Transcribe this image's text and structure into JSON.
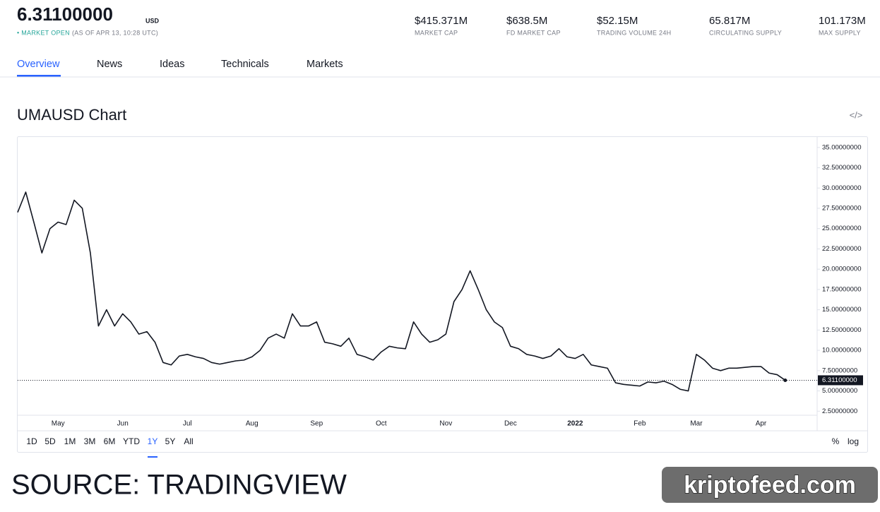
{
  "header": {
    "price": "6.31100000",
    "currency": "USD",
    "status": "• MARKET OPEN",
    "status_time": "(AS OF APR 13, 10:28 UTC)",
    "stats": [
      {
        "value": "$415.371M",
        "label": "MARKET CAP"
      },
      {
        "value": "$638.5M",
        "label": "FD MARKET CAP"
      },
      {
        "value": "$52.15M",
        "label": "TRADING VOLUME 24H"
      },
      {
        "value": "65.817M",
        "label": "CIRCULATING SUPPLY"
      },
      {
        "value": "101.173M",
        "label": "MAX SUPPLY"
      }
    ]
  },
  "tabs": [
    "Overview",
    "News",
    "Ideas",
    "Technicals",
    "Markets"
  ],
  "chart_heading": "UMAUSD Chart",
  "chart_data": {
    "type": "line",
    "color": "#131722",
    "grid": false,
    "categories": [
      null,
      null,
      null,
      null,
      null,
      "May",
      null,
      null,
      null,
      null,
      null,
      null,
      null,
      "Jun",
      null,
      null,
      null,
      null,
      null,
      null,
      null,
      "Jul",
      null,
      null,
      null,
      null,
      null,
      null,
      null,
      "Aug",
      null,
      null,
      null,
      null,
      null,
      null,
      null,
      "Sep",
      null,
      null,
      null,
      null,
      null,
      null,
      null,
      "Oct",
      null,
      null,
      null,
      null,
      null,
      null,
      null,
      "Nov",
      null,
      null,
      null,
      null,
      null,
      null,
      null,
      "Dec",
      null,
      null,
      null,
      null,
      null,
      null,
      null,
      "2022",
      null,
      null,
      null,
      null,
      null,
      null,
      null,
      "Feb",
      null,
      null,
      null,
      null,
      null,
      null,
      "Mar",
      null,
      null,
      null,
      null,
      null,
      null,
      null,
      "Apr",
      null,
      null,
      null
    ],
    "values": [
      27,
      29.5,
      25.8,
      22,
      25,
      25.8,
      25.5,
      28.5,
      27.5,
      22,
      13,
      15,
      13,
      14.5,
      13.5,
      12,
      12.3,
      11,
      8.5,
      8.2,
      9.3,
      9.5,
      9.2,
      9.0,
      8.5,
      8.3,
      8.5,
      8.7,
      8.8,
      9.2,
      10,
      11.5,
      12,
      11.5,
      14.5,
      13,
      13,
      13.5,
      11,
      10.8,
      10.5,
      11.5,
      9.5,
      9.2,
      8.8,
      9.8,
      10.5,
      10.3,
      10.2,
      13.5,
      12,
      11,
      11.3,
      12,
      16,
      17.5,
      19.8,
      17.5,
      15,
      13.5,
      12.8,
      10.5,
      10.2,
      9.5,
      9.3,
      9.0,
      9.3,
      10.2,
      9.2,
      9.0,
      9.5,
      8.2,
      8.0,
      7.8,
      6.0,
      5.8,
      5.7,
      5.6,
      6.1,
      6.0,
      6.2,
      5.8,
      5.2,
      5.0,
      9.5,
      8.8,
      7.8,
      7.5,
      7.8,
      7.8,
      7.9,
      8.0,
      8.0,
      7.2,
      7.0,
      6.311
    ],
    "ylim": [
      2,
      36.2
    ],
    "yticks": [
      {
        "value": 2.5,
        "label": "2.50000000"
      },
      {
        "value": 5,
        "label": "5.00000000"
      },
      {
        "value": 7.5,
        "label": "7.50000000"
      },
      {
        "value": 10,
        "label": "10.00000000"
      },
      {
        "value": 12.5,
        "label": "12.50000000"
      },
      {
        "value": 15,
        "label": "15.00000000"
      },
      {
        "value": 17.5,
        "label": "17.50000000"
      },
      {
        "value": 20,
        "label": "20.00000000"
      },
      {
        "value": 22.5,
        "label": "22.50000000"
      },
      {
        "value": 25,
        "label": "25.00000000"
      },
      {
        "value": 27.5,
        "label": "27.50000000"
      },
      {
        "value": 30,
        "label": "30.00000000"
      },
      {
        "value": 32.5,
        "label": "32.50000000"
      },
      {
        "value": 35,
        "label": "35.00000000"
      }
    ],
    "price_line": {
      "value": 6.311,
      "label": "6.31100000"
    }
  },
  "ranges": [
    "1D",
    "5D",
    "1M",
    "3M",
    "6M",
    "YTD",
    "1Y",
    "5Y",
    "All"
  ],
  "active_range": "1Y",
  "options": [
    "%",
    "log"
  ],
  "caption": "SOURCE: TRADINGVIEW",
  "watermark": "kriptofeed.com"
}
